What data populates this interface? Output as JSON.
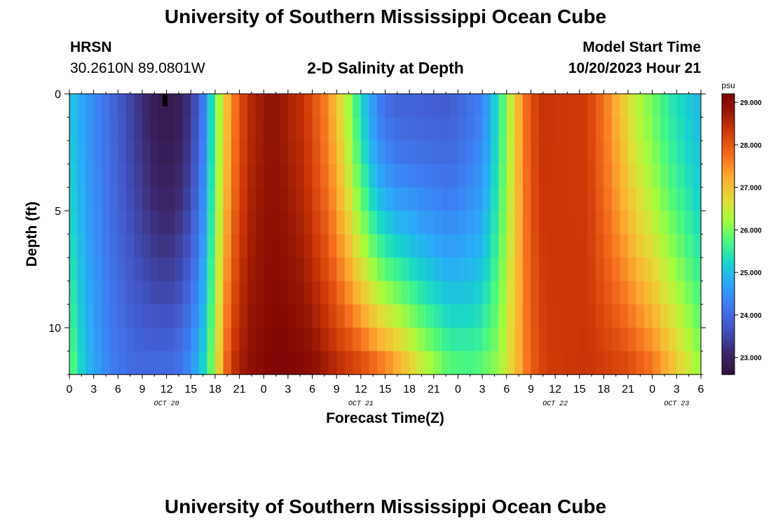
{
  "header": {
    "title": "University of Southern Mississippi Ocean Cube",
    "station_id": "HRSN",
    "station_coords": "30.2610N  89.0801W",
    "plot_title": "2-D Salinity at Depth",
    "model_label": "Model Start Time",
    "model_time": "10/20/2023 Hour 21"
  },
  "footer": {
    "title": "University of Southern Mississippi Ocean Cube"
  },
  "chart_data": {
    "type": "heatmap",
    "title": "2-D Salinity at Depth",
    "xlabel": "Forecast Time(Z)",
    "ylabel": "Depth (ft)",
    "x_range_hours": [
      0,
      78
    ],
    "x_start": "10/20/2023 00Z",
    "x_tick_step_hours": 3,
    "x_tick_labels": [
      "0",
      "3",
      "6",
      "9",
      "12",
      "15",
      "18",
      "21",
      "0",
      "3",
      "6",
      "9",
      "12",
      "15",
      "18",
      "21",
      "0",
      "3",
      "6",
      "9",
      "12",
      "15",
      "18",
      "21",
      "0",
      "3",
      "6"
    ],
    "day_labels": [
      {
        "label": "OCT 20",
        "hour": 12
      },
      {
        "label": "OCT 21",
        "hour": 36
      },
      {
        "label": "OCT 22",
        "hour": 60
      },
      {
        "label": "OCT 23",
        "hour": 75
      }
    ],
    "y_range_ft": [
      0,
      12
    ],
    "y_inverted": true,
    "y_tick_labels": [
      {
        "value": 0,
        "label": "0"
      },
      {
        "value": 5,
        "label": "5"
      },
      {
        "value": 10,
        "label": "10"
      }
    ],
    "colorbar": {
      "unit": "psu",
      "range": [
        22.6,
        29.2
      ],
      "ticks": [
        23.0,
        24.0,
        25.0,
        26.0,
        27.0,
        28.0,
        29.0
      ],
      "tick_labels": [
        "23.000",
        "24.000",
        "25.000",
        "26.000",
        "27.000",
        "28.000",
        "29.000"
      ]
    },
    "surface_salinity_by_hour": [
      [
        0,
        25.1
      ],
      [
        2,
        24.6
      ],
      [
        5,
        24.0
      ],
      [
        8,
        23.4
      ],
      [
        11,
        22.8
      ],
      [
        13,
        22.8
      ],
      [
        15,
        23.3
      ],
      [
        16.5,
        24.2
      ],
      [
        18,
        25.8
      ],
      [
        19,
        26.7
      ],
      [
        20,
        27.5
      ],
      [
        22,
        28.5
      ],
      [
        25,
        28.9
      ],
      [
        29,
        28.4
      ],
      [
        32,
        27.5
      ],
      [
        34,
        26.5
      ],
      [
        36,
        25.3
      ],
      [
        38,
        24.3
      ],
      [
        40,
        23.9
      ],
      [
        47,
        23.8
      ],
      [
        51,
        24.3
      ],
      [
        53,
        25.4
      ],
      [
        55,
        26.8
      ],
      [
        56,
        27.6
      ],
      [
        58,
        28.4
      ],
      [
        64,
        28.3
      ],
      [
        67,
        27.4
      ],
      [
        70,
        26.4
      ],
      [
        74,
        25.5
      ],
      [
        78,
        24.9
      ]
    ],
    "bottom_salinity_by_hour": [
      [
        0,
        26.0
      ],
      [
        2,
        25.0
      ],
      [
        5,
        24.3
      ],
      [
        8,
        24.0
      ],
      [
        13,
        24.1
      ],
      [
        15,
        24.5
      ],
      [
        17,
        25.5
      ],
      [
        18,
        26.4
      ],
      [
        19,
        27.5
      ],
      [
        20,
        28.4
      ],
      [
        22,
        28.9
      ],
      [
        26,
        29.2
      ],
      [
        30,
        29.0
      ],
      [
        33,
        28.6
      ],
      [
        36,
        28.3
      ],
      [
        40,
        27.6
      ],
      [
        44,
        26.5
      ],
      [
        47,
        25.9
      ],
      [
        50,
        25.8
      ],
      [
        53,
        26.2
      ],
      [
        55,
        27.0
      ],
      [
        57,
        27.9
      ],
      [
        59,
        28.3
      ],
      [
        64,
        28.4
      ],
      [
        69,
        28.2
      ],
      [
        72,
        27.8
      ],
      [
        75,
        27.0
      ],
      [
        78,
        26.2
      ]
    ]
  }
}
